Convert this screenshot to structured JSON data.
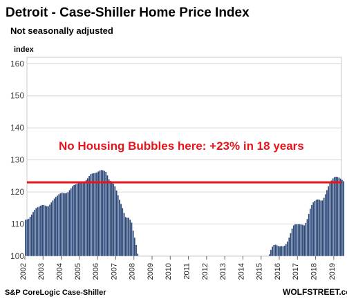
{
  "chart_data": {
    "type": "bar",
    "title": "Detroit - Case-Shiller Home Price Index",
    "subtitle": "Not seasonally adjusted",
    "ylabel": "index",
    "ylim": [
      100,
      162
    ],
    "yticks": [
      100,
      110,
      120,
      130,
      140,
      150,
      160
    ],
    "xticks": [
      "2002",
      "2003",
      "2004",
      "2005",
      "2006",
      "2007",
      "2008",
      "2009",
      "2010",
      "2011",
      "2012",
      "2013",
      "2014",
      "2015",
      "2016",
      "2017",
      "2018",
      "2019"
    ],
    "grid": true,
    "bar_color": "#2e4a7a",
    "annotation": "No Housing Bubbles here: +23% in 18 years",
    "annotation_color": "#e8141c",
    "reference_line": {
      "value": 123,
      "color": "#e8141c"
    },
    "source": "S&P CoreLogic Case-Shiller",
    "brand": "WOLFSTREET.com",
    "series": [
      {
        "segments": [
          {
            "start": "2002-01",
            "values": [
              111.4,
              111.5,
              111.7,
              112.3,
              113.0,
              113.8,
              114.5,
              115.0,
              115.3,
              115.5,
              115.8,
              116.0,
              116.0,
              115.8,
              115.6,
              115.6,
              116.1,
              116.8,
              117.4,
              118.0,
              118.5,
              118.9,
              119.3,
              119.6,
              119.8,
              119.7,
              119.6,
              119.7,
              120.0,
              120.6,
              121.2,
              121.8,
              122.2,
              122.4,
              122.6,
              122.8,
              123.0,
              123.0,
              123.2,
              123.4,
              123.8,
              124.3,
              125.0,
              125.6,
              125.8,
              125.9,
              126.0,
              126.1,
              126.4,
              126.7,
              126.9,
              126.8,
              126.6,
              126.3,
              125.2,
              124.0,
              123.5,
              123.2,
              122.6,
              121.8,
              120.5,
              119.0,
              117.6,
              116.3,
              115.0,
              113.5,
              112.2,
              112.0,
              112.0,
              111.4,
              110.5,
              108.0,
              105.8,
              103.5,
              100.8
            ]
          },
          {
            "start": "2015-06",
            "values": [
              100.6,
              102.0,
              103.0,
              103.5,
              103.6,
              103.4,
              103.2,
              103.1,
              103.2,
              103.1,
              103.3,
              103.8,
              104.6,
              105.8,
              107.2,
              108.6,
              109.6,
              110.0,
              110.0,
              110.0,
              110.0,
              109.9,
              109.8,
              109.6,
              110.4,
              111.6,
              113.2,
              114.8,
              116.0,
              116.8,
              117.3,
              117.6,
              117.7,
              117.6,
              117.4,
              117.4,
              118.2,
              119.3,
              120.6,
              121.8,
              122.8,
              123.6,
              124.3,
              124.7,
              124.8,
              124.7,
              124.5,
              124.2,
              123.8,
              123.4
            ]
          }
        ]
      }
    ]
  }
}
